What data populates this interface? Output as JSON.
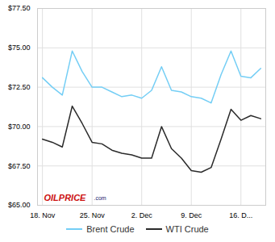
{
  "chart_data": {
    "type": "line",
    "x": [
      0,
      1,
      2,
      3,
      4,
      5,
      6,
      7,
      8,
      9,
      10,
      11,
      12,
      13,
      14,
      15,
      16,
      17,
      18,
      19,
      20,
      21,
      22
    ],
    "series": [
      {
        "name": "Brent Crude",
        "color": "#74cef5",
        "values": [
          73.1,
          72.5,
          72.0,
          74.8,
          73.5,
          72.5,
          72.5,
          72.2,
          71.9,
          72.0,
          71.8,
          72.3,
          73.8,
          72.3,
          72.2,
          71.9,
          71.8,
          71.5,
          73.3,
          74.8,
          73.2,
          73.1,
          73.7
        ]
      },
      {
        "name": "WTI Crude",
        "color": "#2a2a2a",
        "values": [
          69.2,
          69.0,
          68.7,
          71.3,
          70.2,
          69.0,
          68.9,
          68.5,
          68.3,
          68.2,
          68.0,
          68.0,
          70.0,
          68.6,
          68.0,
          67.2,
          67.1,
          67.4,
          69.2,
          71.1,
          70.4,
          70.7,
          70.5
        ]
      }
    ],
    "xlim": [
      -0.5,
      22.5
    ],
    "xticks": [
      {
        "value": 0,
        "label": "18. Nov"
      },
      {
        "value": 5,
        "label": "25. Nov"
      },
      {
        "value": 10,
        "label": "2. Dec"
      },
      {
        "value": 15,
        "label": "9. Dec"
      },
      {
        "value": 20,
        "label": "16. D..."
      }
    ],
    "ylim": [
      65.0,
      77.5
    ],
    "yticks": [
      {
        "value": 65.0,
        "label": "$65.00"
      },
      {
        "value": 67.5,
        "label": "$67.50"
      },
      {
        "value": 70.0,
        "label": "$70.00"
      },
      {
        "value": 72.5,
        "label": "$72.50"
      },
      {
        "value": 75.0,
        "label": "$75.00"
      },
      {
        "value": 77.5,
        "label": "$77.50"
      }
    ],
    "grid": true,
    "legend": "bottom",
    "annotations": [
      {
        "text": "OILPRICE",
        "color": "#cc1111"
      },
      {
        "text": ".com",
        "color": "#1a1a6e"
      }
    ]
  }
}
